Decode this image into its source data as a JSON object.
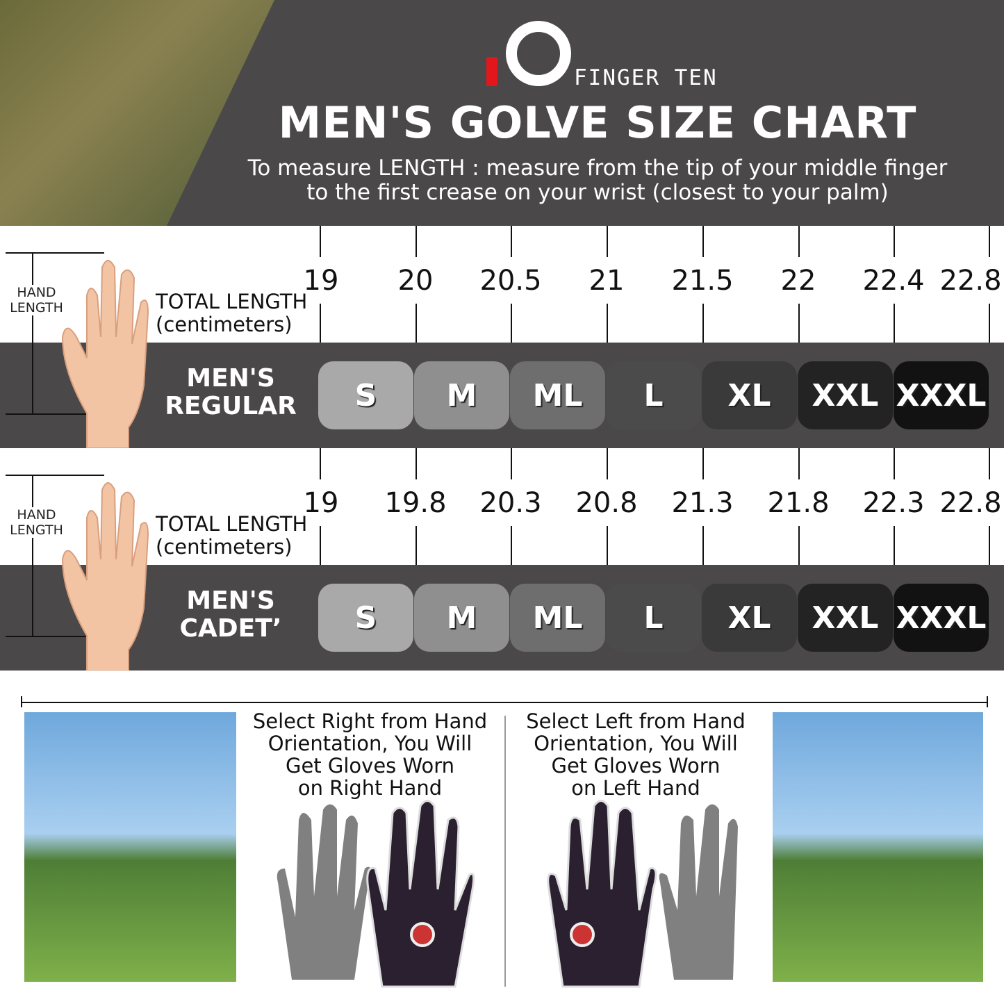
{
  "brand": {
    "logo_text": "FINGER TEN",
    "accent": "#e3161c"
  },
  "title": "MEN'S GOLVE SIZE CHART",
  "subtitle_line1": "To measure LENGTH : measure from the tip of your middle finger",
  "subtitle_line2": "to the first crease on your wrist (closest to your palm)",
  "hand_length_label": [
    "HAND",
    "LENGTH"
  ],
  "total_length_label": [
    "TOTAL LENGTH",
    "(centimeters)"
  ],
  "sizes": [
    "S",
    "M",
    "ML",
    "L",
    "XL",
    "XXL",
    "XXXL"
  ],
  "size_colors": [
    "#a9a9a9",
    "#8f8f8f",
    "#6e6e6e",
    "#4b4b4b",
    "#3a3a3a",
    "#232323",
    "#121212"
  ],
  "regular": {
    "label": [
      "MEN'S",
      "REGULAR"
    ],
    "lengths": [
      "19",
      "20",
      "20.5",
      "21",
      "21.5",
      "22",
      "22.4",
      "22.8"
    ]
  },
  "cadet": {
    "label": [
      "MEN'S",
      "CADET’"
    ],
    "lengths": [
      "19",
      "19.8",
      "20.3",
      "20.8",
      "21.3",
      "21.8",
      "22.3",
      "22.8"
    ]
  },
  "right": {
    "text": [
      "Select Right from Hand",
      "Orientation, You Will",
      "Get Gloves Worn",
      "on Right Hand"
    ]
  },
  "left": {
    "text": [
      "Select Left from Hand",
      "Orientation, You Will",
      "Get Gloves Worn",
      "on Left Hand"
    ]
  }
}
